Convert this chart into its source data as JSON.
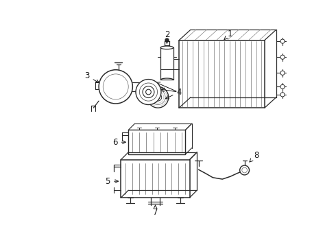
{
  "background": "#ffffff",
  "line_color": "#2a2a2a",
  "label_color": "#1a1a1a",
  "figsize": [
    4.9,
    3.6
  ],
  "dpi": 100
}
